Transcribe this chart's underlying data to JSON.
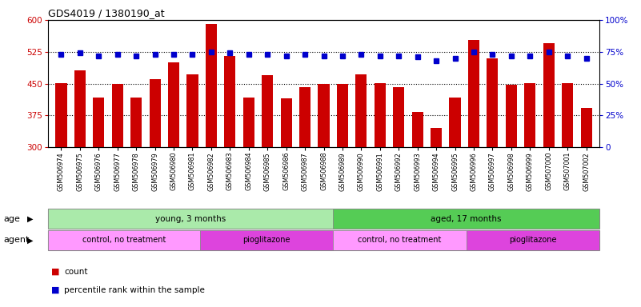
{
  "title": "GDS4019 / 1380190_at",
  "samples": [
    "GSM506974",
    "GSM506975",
    "GSM506976",
    "GSM506977",
    "GSM506978",
    "GSM506979",
    "GSM506980",
    "GSM506981",
    "GSM506982",
    "GSM506983",
    "GSM506984",
    "GSM506985",
    "GSM506986",
    "GSM506987",
    "GSM506988",
    "GSM506989",
    "GSM506990",
    "GSM506991",
    "GSM506992",
    "GSM506993",
    "GSM506994",
    "GSM506995",
    "GSM506996",
    "GSM506997",
    "GSM506998",
    "GSM506999",
    "GSM507000",
    "GSM507001",
    "GSM507002"
  ],
  "counts": [
    452,
    482,
    418,
    450,
    417,
    460,
    500,
    472,
    591,
    516,
    417,
    470,
    415,
    442,
    450,
    450,
    472,
    452,
    442,
    383,
    345,
    418,
    552,
    510,
    448,
    452,
    545,
    452,
    393
  ],
  "percentiles": [
    73,
    74,
    72,
    73,
    72,
    73,
    73,
    73,
    75,
    74,
    73,
    73,
    72,
    73,
    72,
    72,
    73,
    72,
    72,
    71,
    68,
    70,
    75,
    73,
    72,
    72,
    75,
    72,
    70
  ],
  "ylim_left": [
    300,
    600
  ],
  "ylim_right": [
    0,
    100
  ],
  "yticks_left": [
    300,
    375,
    450,
    525,
    600
  ],
  "yticks_right": [
    0,
    25,
    50,
    75,
    100
  ],
  "bar_color": "#cc0000",
  "dot_color": "#0000cc",
  "bg_color": "#ffffff",
  "n_young": 15,
  "n_control1": 8,
  "n_piog1": 7,
  "n_control2": 7,
  "n_piog2": 7,
  "color_young": "#aaeaaa",
  "color_aged": "#55cc55",
  "color_control": "#ff99ff",
  "color_piog": "#dd44dd",
  "left_tick_color": "#cc0000",
  "right_tick_color": "#0000cc"
}
